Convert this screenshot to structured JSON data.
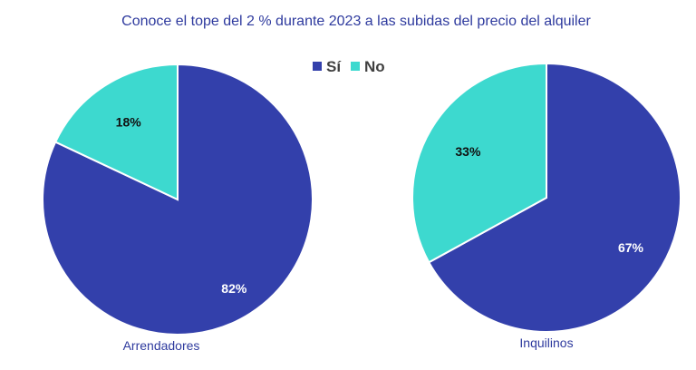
{
  "chart_data": {
    "type": "pie",
    "title": "Conoce el tope del 2 % durante 2023 a las subidas del precio del alquiler",
    "legend": {
      "placement": "top-center",
      "entries": [
        {
          "name": "Sí",
          "color": "#3340ab"
        },
        {
          "name": "No",
          "color": "#3dd9cf"
        }
      ]
    },
    "charts": [
      {
        "category": "Arrendadores",
        "slices": [
          {
            "name": "Sí",
            "value": 82,
            "label": "82%",
            "color": "#3340ab"
          },
          {
            "name": "No",
            "value": 18,
            "label": "18%",
            "color": "#3dd9cf"
          }
        ]
      },
      {
        "category": "Inquilinos",
        "slices": [
          {
            "name": "Sí",
            "value": 67,
            "label": "67%",
            "color": "#3340ab"
          },
          {
            "name": "No",
            "value": 33,
            "label": "33%",
            "color": "#3dd9cf"
          }
        ]
      }
    ]
  }
}
